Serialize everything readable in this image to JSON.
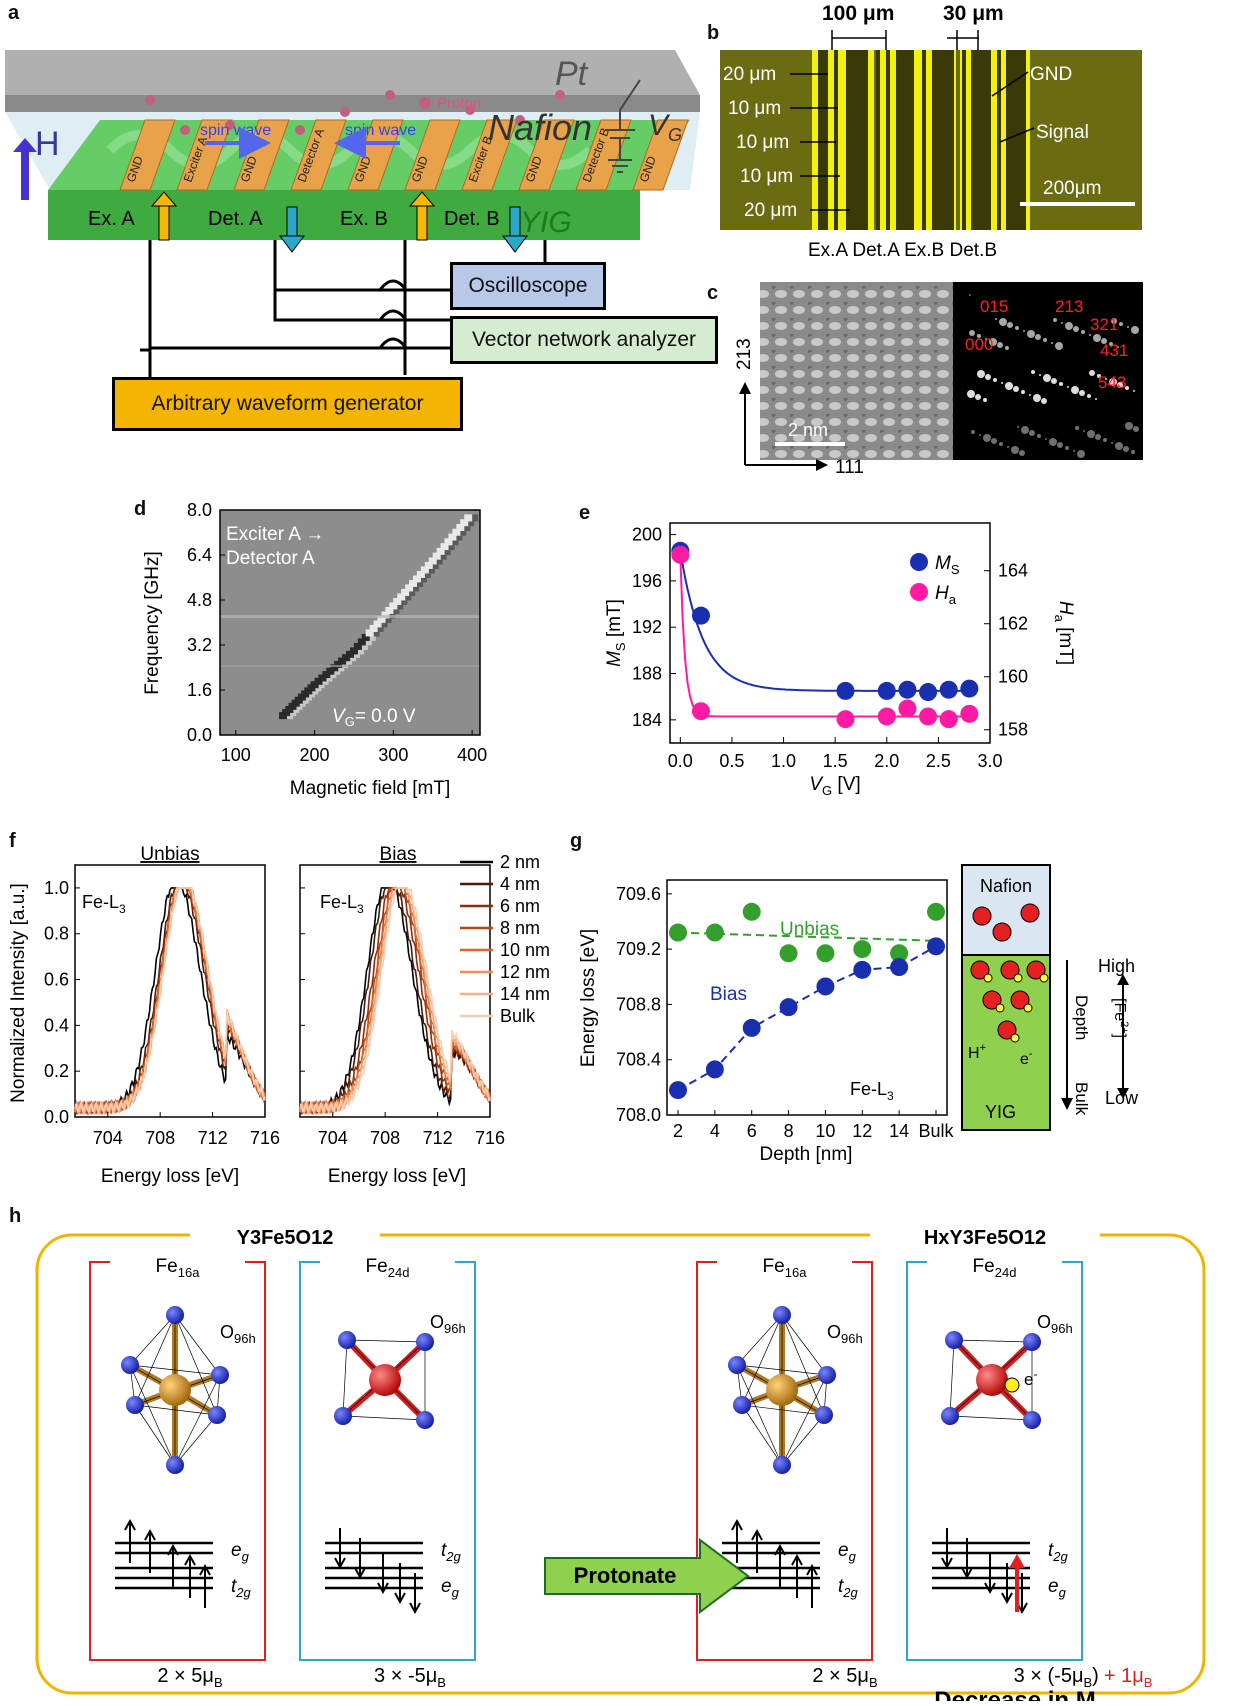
{
  "colors": {
    "blue": "#1a2fb0",
    "pink": "#ff1aa3",
    "green": "#33a02c",
    "yig": "#4ca64c",
    "gold": "#f5b800",
    "yellow": "#f2f20a",
    "red": "#e02020",
    "cyan": "#2aa8c8"
  },
  "panel_a": {
    "label": "a",
    "pt": "Pt",
    "nafion": "Nafion",
    "vg": "V",
    "vg_sub": "G",
    "h": "H",
    "proton": "Proton",
    "spin_wave_1": "spin wave",
    "spin_wave_2": "spin wave",
    "yig": "YIG",
    "ex_a": "Ex. A",
    "det_a": "Det. A",
    "ex_b": "Ex. B",
    "det_b": "Det. B",
    "electrodes": [
      "GND",
      "Exciter A",
      "GND",
      "Detector A",
      "GND",
      "GND",
      "Exciter B",
      "GND",
      "Detector B",
      "GND"
    ],
    "oscilloscope": "Oscilloscope",
    "vna": "Vector network analyzer",
    "awg": "Arbitrary waveform generator"
  },
  "panel_b": {
    "label": "b",
    "w1": "100 μm",
    "w2": "30 μm",
    "dims": [
      "20 μm",
      "10 μm",
      "10 μm",
      "10 μm",
      "20 μm"
    ],
    "gnd": "GND",
    "signal": "Signal",
    "scale": "200μm",
    "bottom": "Ex.A Det.A Ex.B Det.B"
  },
  "panel_c": {
    "label": "c",
    "scale": "2 nm",
    "axis_v": "21",
    "axis_v_bar": "3",
    "axis_h": "111",
    "spots": [
      "000",
      "015",
      "213",
      "321",
      "431",
      "543"
    ]
  },
  "panel_d": {
    "label": "d",
    "title_1": "Exciter A →",
    "title_2": "Detector A",
    "vg_note": "= 0.0 V",
    "vg": "V",
    "vg_sub": "G",
    "xlabel": "Magnetic field [mT]",
    "ylabel": "Frequency [GHz]"
  },
  "panel_e": {
    "label": "e",
    "ylabel_left": "M",
    "ylabel_left_sub": "S",
    "ylabel_left_unit": " [mT]",
    "ylabel_right": "H",
    "ylabel_right_sub": "a",
    "ylabel_right_unit": " [mT]",
    "xlabel": "V",
    "xlabel_sub": "G",
    "xlabel_unit": " [V]",
    "legend_ms": "M",
    "legend_ms_sub": "S",
    "legend_ha": "H",
    "legend_ha_sub": "a"
  },
  "panel_f": {
    "label": "f",
    "title_unbias": "Unbias",
    "title_bias": "Bias",
    "fel3": "Fe-L",
    "fel3_sub": "3",
    "ylabel": "Normalized Intensity [a.u.]",
    "xlabel": "Energy loss [eV]",
    "legend": [
      "2 nm",
      "4 nm",
      "6 nm",
      "8 nm",
      "10 nm",
      "12 nm",
      "14 nm",
      "Bulk"
    ]
  },
  "panel_g": {
    "label": "g",
    "unbias": "Unbias",
    "bias": "Bias",
    "fel3": "Fe-L",
    "fel3_sub": "3",
    "xlabel": "Depth [nm]",
    "ylabel": "Energy loss [eV]",
    "nafion": "Nafion",
    "yig": "YIG",
    "hplus": "H",
    "hplus_sup": "+",
    "eminus": "e",
    "eminus_sup": "-",
    "depth": "Depth",
    "bulk": "Bulk",
    "high": "High",
    "low": "Low",
    "fe2": "[Fe",
    "fe2_sup": "2+",
    "fe2_end": "]"
  },
  "panel_h": {
    "label": "h",
    "left_title": "Y3Fe5O12",
    "right_title": "HxY3Fe5O12",
    "fe16a": "Fe",
    "fe16a_sub": "16a",
    "fe24d": "Fe",
    "fe24d_sub": "24d",
    "o96h": "O",
    "o96h_sub": "96h",
    "eg": "e",
    "eg_sub": "g",
    "t2g": "t",
    "t2g_sub": "2g",
    "protonate": "Protonate",
    "m1": "2 × 5μ",
    "m1_sub": "B",
    "m2": "3 × -5μ",
    "m2_sub": "B",
    "m3": "2 × 5μ",
    "m3_sub": "B",
    "m4": "3 × (-5μ",
    "m4_sub": "B",
    "m4_end": ")",
    "m4_plus": "+ 1μ",
    "m4_plus_sub": "B",
    "decrease": "Decrease in M",
    "decrease_sub": "S",
    "eminus": "e",
    "eminus_sup": "-"
  },
  "chart_data": [
    {
      "type": "heatmap",
      "title": "Exciter A → Detector A",
      "xlabel": "Magnetic field [mT]",
      "ylabel": "Frequency [GHz]",
      "xticks": [
        100,
        200,
        300,
        400
      ],
      "yticks": [
        0.0,
        1.6,
        3.2,
        4.8,
        6.4,
        8.0
      ],
      "xlim": [
        80,
        410
      ],
      "ylim": [
        0,
        8
      ],
      "ridge": {
        "x": [
          160,
          200,
          250,
          300,
          350,
          400
        ],
        "y": [
          0.6,
          1.7,
          2.9,
          4.5,
          6.1,
          7.8
        ]
      }
    },
    {
      "type": "scatter",
      "xlabel": "VG [V]",
      "ylabel": "MS [mT]",
      "ylabel_right": "Ha [mT]",
      "xlim": [
        -0.1,
        3.0
      ],
      "ylim": [
        182,
        201
      ],
      "ylim_right": [
        157.5,
        165.8
      ],
      "xticks": [
        0.0,
        0.5,
        1.0,
        1.5,
        2.0,
        2.5,
        3.0
      ],
      "yticks": [
        184,
        188,
        192,
        196,
        200
      ],
      "yticks_right": [
        158,
        160,
        162,
        164
      ],
      "series": [
        {
          "name": "MS",
          "x": [
            0,
            0.2,
            1.6,
            2.0,
            2.2,
            2.4,
            2.6,
            2.8
          ],
          "values": [
            198.6,
            193.0,
            186.5,
            186.5,
            186.6,
            186.4,
            186.6,
            186.7
          ]
        },
        {
          "name": "Ha",
          "x": [
            0,
            0.2,
            1.6,
            2.0,
            2.2,
            2.4,
            2.6,
            2.8
          ],
          "values": [
            164.6,
            158.7,
            158.4,
            158.5,
            158.8,
            158.5,
            158.4,
            158.6
          ]
        }
      ]
    },
    {
      "type": "line",
      "title": "Unbias",
      "xlabel": "Energy loss [eV]",
      "ylabel": "Normalized Intensity [a.u.]",
      "xlim": [
        701.5,
        716
      ],
      "ylim": [
        0,
        1.1
      ],
      "xticks": [
        704,
        708,
        712,
        716
      ],
      "yticks": [
        0.0,
        0.2,
        0.4,
        0.6,
        0.8,
        1.0
      ],
      "series": [
        {
          "name": "2 nm",
          "peak": 709.2
        },
        {
          "name": "4 nm",
          "peak": 709.5
        },
        {
          "name": "6 nm",
          "peak": 709.6
        },
        {
          "name": "8 nm",
          "peak": 709.7
        },
        {
          "name": "10 nm",
          "peak": 709.7
        },
        {
          "name": "12 nm",
          "peak": 709.8
        },
        {
          "name": "14 nm",
          "peak": 709.8
        },
        {
          "name": "Bulk",
          "peak": 709.8
        }
      ]
    },
    {
      "type": "line",
      "title": "Bias",
      "xlabel": "Energy loss [eV]",
      "ylabel": "Normalized Intensity [a.u.]",
      "xlim": [
        701.5,
        716
      ],
      "ylim": [
        0,
        1.1
      ],
      "xticks": [
        704,
        708,
        712,
        716
      ],
      "yticks": [
        0.0,
        0.2,
        0.4,
        0.6,
        0.8,
        1.0
      ],
      "series": [
        {
          "name": "2 nm",
          "peak": 708.2
        },
        {
          "name": "4 nm",
          "peak": 708.4
        },
        {
          "name": "6 nm",
          "peak": 708.7
        },
        {
          "name": "8 nm",
          "peak": 708.9
        },
        {
          "name": "10 nm",
          "peak": 709.0
        },
        {
          "name": "12 nm",
          "peak": 709.1
        },
        {
          "name": "14 nm",
          "peak": 709.2
        },
        {
          "name": "Bulk",
          "peak": 709.3
        }
      ]
    },
    {
      "type": "scatter",
      "xlabel": "Depth [nm]",
      "ylabel": "Energy loss [eV]",
      "categories": [
        "2",
        "4",
        "6",
        "8",
        "10",
        "12",
        "14",
        "Bulk"
      ],
      "ylim": [
        708.0,
        709.7
      ],
      "yticks": [
        708.0,
        708.4,
        708.8,
        709.2,
        709.6
      ],
      "series": [
        {
          "name": "Unbias",
          "values": [
            709.32,
            709.32,
            709.47,
            709.17,
            709.17,
            709.2,
            709.17,
            709.47
          ]
        },
        {
          "name": "Bias",
          "values": [
            708.18,
            708.33,
            708.63,
            708.78,
            708.93,
            709.05,
            709.07,
            709.22
          ]
        }
      ]
    }
  ]
}
